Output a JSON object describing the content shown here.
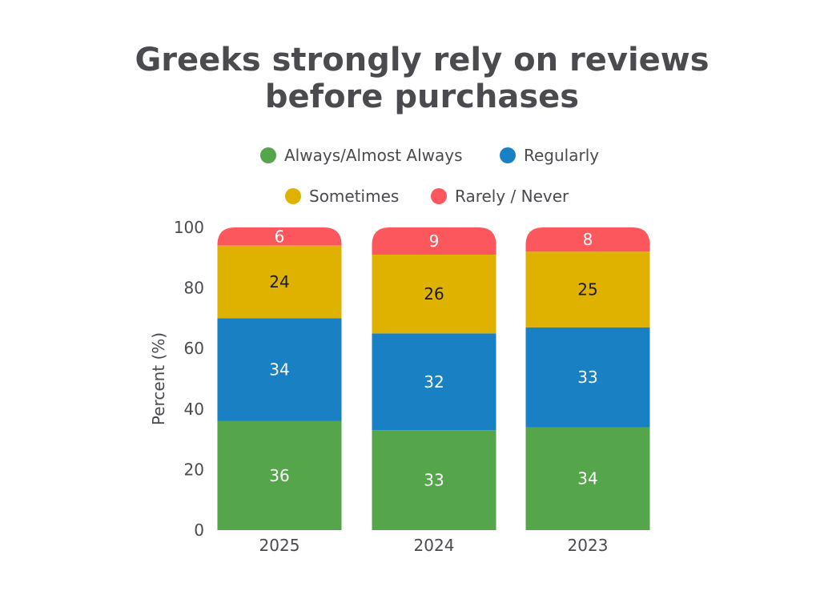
{
  "chart_data": {
    "type": "bar",
    "stacked": true,
    "title": "Greeks strongly rely on reviews before purchases",
    "title_lines": [
      "Greeks strongly rely on reviews",
      "before purchases"
    ],
    "xlabel": "",
    "ylabel": "Percent (%)",
    "ylim": [
      0,
      100
    ],
    "yticks": [
      0,
      20,
      40,
      60,
      80,
      100
    ],
    "categories": [
      "2025",
      "2024",
      "2023"
    ],
    "legend_position": "top",
    "grid": false,
    "series": [
      {
        "name": "Always/Almost Always",
        "color": "#55a64b",
        "label_color": "#ffffff",
        "values": [
          36,
          33,
          34
        ]
      },
      {
        "name": "Regularly",
        "color": "#1a80c4",
        "label_color": "#ffffff",
        "values": [
          34,
          32,
          33
        ]
      },
      {
        "name": "Sometimes",
        "color": "#e0b200",
        "label_color": "#1a1a1a",
        "values": [
          24,
          26,
          25
        ]
      },
      {
        "name": "Rarely / Never",
        "color": "#fb575c",
        "label_color": "#ffffff",
        "values": [
          6,
          9,
          8
        ]
      }
    ]
  }
}
